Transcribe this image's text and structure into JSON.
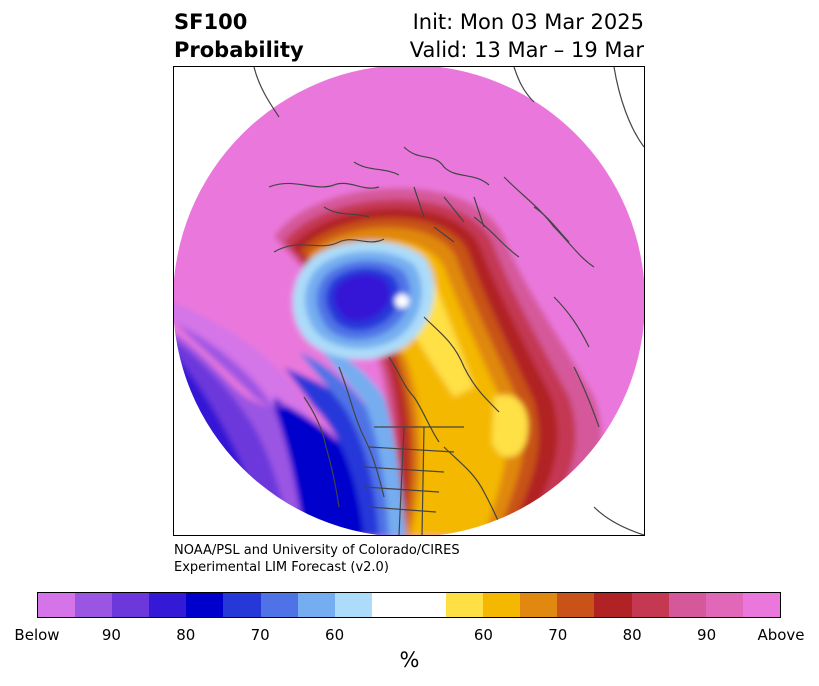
{
  "header": {
    "title_line1": "SF100",
    "title_line2": "Probability",
    "init_line": "Init: Mon 03 Mar 2025",
    "valid_line": "Valid: 13 Mar – 19 Mar"
  },
  "credit": {
    "line1": "NOAA/PSL and University of Colorado/CIRES",
    "line2": "Experimental LIM Forecast (v2.0)"
  },
  "colorbar": {
    "colors": [
      "#d474e8",
      "#9b55e3",
      "#6c38dc",
      "#3419d6",
      "#0000cc",
      "#2738d9",
      "#4f73e6",
      "#74adf0",
      "#acdcf9",
      "#ffffff",
      "#ffffff",
      "#ffe044",
      "#f4b800",
      "#e08810",
      "#c85218",
      "#b12224",
      "#c53852",
      "#d5589a",
      "#e168b8",
      "#ea78dc"
    ],
    "tick_labels": [
      "Below",
      "90",
      "80",
      "70",
      "60",
      "60",
      "70",
      "80",
      "90",
      "Above"
    ],
    "unit": "%"
  },
  "map": {
    "region": "Northern Hemisphere polar stereographic",
    "colors": {
      "above_max": "#ea78dc",
      "pink": "#d5589a",
      "rose": "#c53852",
      "red": "#b12224",
      "orange_red": "#c85218",
      "orange": "#e08810",
      "gold": "#f4b800",
      "yellow": "#ffe044",
      "light_blue": "#acdcf9",
      "sky_blue": "#74adf0",
      "mid_blue": "#4f73e6",
      "blue": "#2738d9",
      "deep_blue": "#0000cc",
      "indigo": "#3419d6",
      "violet": "#6c38dc",
      "purple": "#9b55e3",
      "lavender": "#d474e8"
    }
  }
}
